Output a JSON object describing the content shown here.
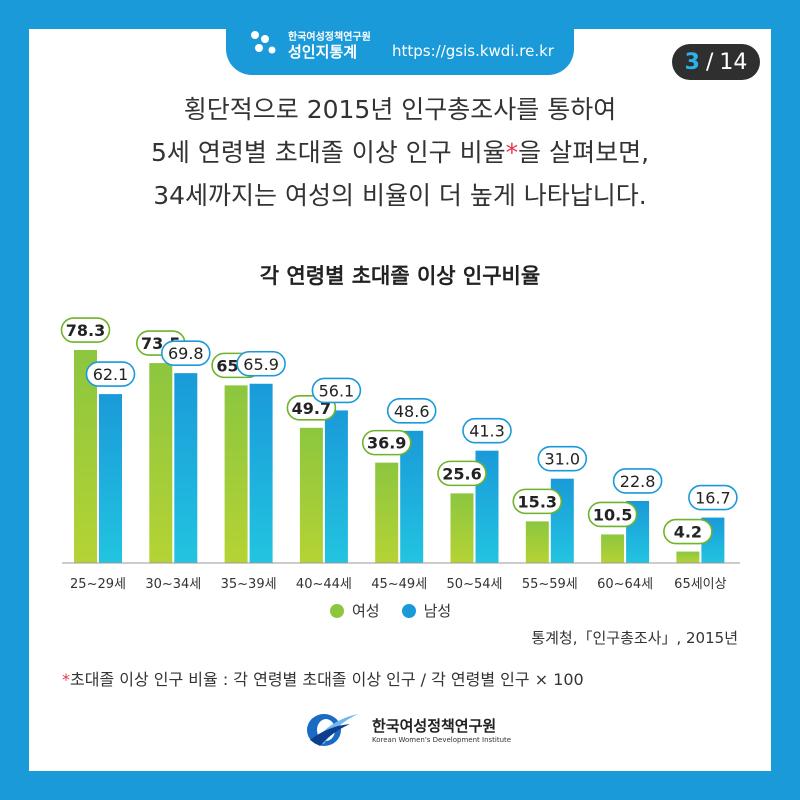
{
  "header": {
    "org_small": "한국여성정책연구원",
    "brand": "성인지통계",
    "url": "https://gsis.kwdi.re.kr"
  },
  "page": {
    "current": "3",
    "separator": "/",
    "total": "14"
  },
  "headline": {
    "line1": "횡단적으로 2015년 인구총조사를 통하여",
    "line2_before": "5세 연령별 초대졸 이상 인구 비율",
    "line2_star": "*",
    "line2_after": "을 살펴보면,",
    "line3": "34세까지는 여성의 비율이 더 높게 나타납니다."
  },
  "chart_data": {
    "type": "bar",
    "title": "각 연령별 초대졸 이상 인구비율",
    "categories": [
      "25~29세",
      "30~34세",
      "35~39세",
      "40~44세",
      "45~49세",
      "50~54세",
      "55~59세",
      "60~64세",
      "65세이상"
    ],
    "series": [
      {
        "name": "여성",
        "values": [
          78.3,
          73.5,
          65.3,
          49.7,
          36.9,
          25.6,
          15.3,
          10.5,
          4.2
        ]
      },
      {
        "name": "남성",
        "values": [
          62.1,
          69.8,
          65.9,
          56.1,
          48.6,
          41.3,
          31.0,
          22.8,
          16.7
        ]
      }
    ],
    "value_labels": {
      "female": [
        "78.3",
        "73.5",
        "65.3",
        "49.7",
        "36.9",
        "25.6",
        "15.3",
        "10.5",
        "4.2"
      ],
      "male": [
        "62.1",
        "69.8",
        "65.9",
        "56.1",
        "48.6",
        "41.3",
        "31.0",
        "22.8",
        "16.7"
      ]
    },
    "ylim": [
      0,
      100
    ],
    "grid": false,
    "legend_placement": "bottom",
    "colors": {
      "female": "#8cc63f",
      "female_light": "#b5d334",
      "male": "#1a9ad9",
      "male_light": "#22c4e0"
    }
  },
  "legend": {
    "female": "여성",
    "male": "남성"
  },
  "source": "통계청,「인구총조사」, 2015년",
  "footnote": {
    "star": "*",
    "text": "초대졸 이상 인구 비율 : 각 연령별 초대졸 이상 인구 / 각 연령별 인구 × 100"
  },
  "org": {
    "name_kr": "한국여성정책연구원",
    "name_en": "Korean Women's Development Institute"
  }
}
